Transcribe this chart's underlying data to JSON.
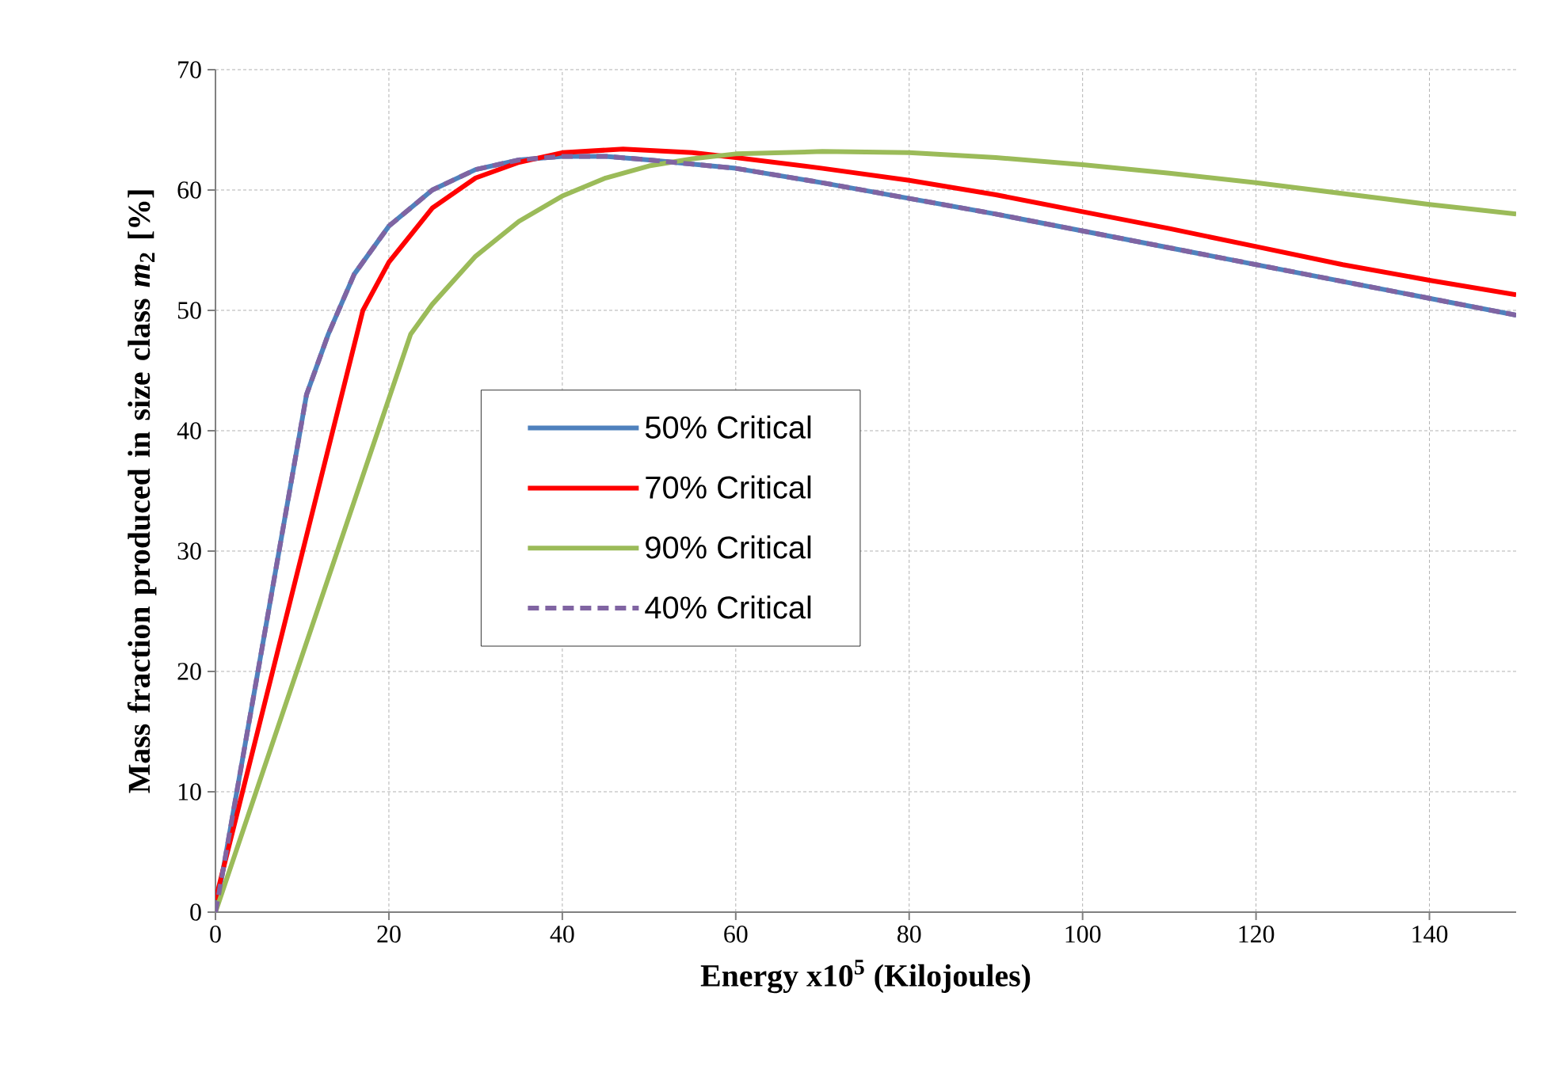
{
  "chart_data": {
    "type": "line",
    "xlabel": "Energy x10$^{5}$  (Kilojoules)",
    "ylabel": "Mass fraction produced in size class *m*$_{2}$ [%]",
    "xlim": [
      0,
      150
    ],
    "ylim": [
      0,
      70
    ],
    "xticks": [
      0,
      20,
      40,
      60,
      80,
      100,
      120,
      140
    ],
    "yticks": [
      0,
      10,
      20,
      30,
      40,
      50,
      60,
      70
    ],
    "grid": true,
    "legend": "left",
    "series": [
      {
        "name": "50% Critical",
        "color": "#4f81bd",
        "line_style": "solid",
        "x": [
          0,
          1,
          10.5,
          13,
          16,
          20,
          25,
          30,
          35,
          40,
          45,
          50,
          60,
          70,
          80,
          90,
          100,
          110,
          120,
          130,
          140,
          150
        ],
        "values": [
          0,
          4,
          43,
          48,
          53,
          57,
          60,
          61.7,
          62.5,
          62.8,
          62.8,
          62.5,
          61.8,
          60.6,
          59.3,
          58,
          56.6,
          55.2,
          53.8,
          52.4,
          51,
          49.6
        ]
      },
      {
        "name": "70% Critical",
        "color": "#ff0000",
        "line_style": "solid",
        "x": [
          0,
          17,
          20,
          25,
          30,
          35,
          40,
          47,
          55,
          60,
          70,
          80,
          90,
          100,
          110,
          120,
          130,
          140,
          150
        ],
        "values": [
          1,
          50,
          54,
          58.5,
          61,
          62.3,
          63.1,
          63.4,
          63.1,
          62.7,
          61.8,
          60.8,
          59.6,
          58.2,
          56.8,
          55.3,
          53.8,
          52.5,
          51.3
        ]
      },
      {
        "name": "90% Critical",
        "color": "#9bbb59",
        "line_style": "solid",
        "x": [
          0,
          22.5,
          25,
          30,
          35,
          40,
          45,
          50,
          55,
          60,
          70,
          80,
          90,
          100,
          110,
          120,
          130,
          140,
          150
        ],
        "values": [
          0,
          48,
          50.5,
          54.5,
          57.4,
          59.5,
          61,
          62,
          62.6,
          63,
          63.2,
          63.1,
          62.7,
          62.1,
          61.4,
          60.6,
          59.7,
          58.8,
          58
        ]
      },
      {
        "name": "40% Critical",
        "color": "#8064a2",
        "line_style": "dashed",
        "x": [
          0,
          1,
          10.5,
          13,
          16,
          20,
          25,
          30,
          35,
          40,
          45,
          50,
          60,
          70,
          80,
          90,
          100,
          110,
          120,
          130,
          140,
          150
        ],
        "values": [
          0,
          4,
          43,
          48,
          53,
          57,
          60,
          61.7,
          62.5,
          62.8,
          62.8,
          62.5,
          61.8,
          60.6,
          59.3,
          58,
          56.6,
          55.2,
          53.8,
          52.4,
          51,
          49.6
        ]
      }
    ]
  }
}
